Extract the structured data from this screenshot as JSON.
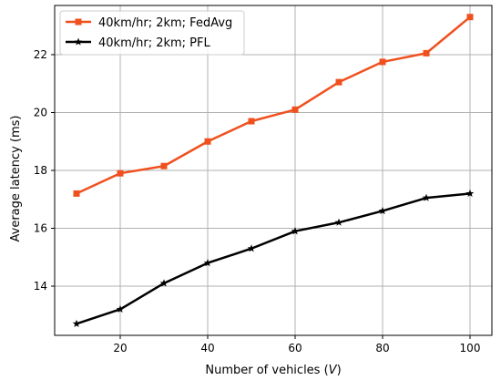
{
  "chart_data": {
    "type": "line",
    "title": "",
    "xlabel": "Number of vehicles (",
    "xlabel_var": "V",
    "xlabel_close": ")",
    "ylabel": "Average latency (ms)",
    "xlim": [
      5,
      105
    ],
    "ylim": [
      12.3,
      23.7
    ],
    "xticks": [
      20,
      40,
      60,
      80,
      100
    ],
    "yticks": [
      14,
      16,
      18,
      20,
      22
    ],
    "grid": true,
    "legend_position": "top-left",
    "x": [
      10,
      20,
      30,
      40,
      50,
      60,
      70,
      80,
      90,
      100
    ],
    "series": [
      {
        "name": "40km/hr; 2km; FedAvg",
        "color": "#f0501e",
        "marker": "square",
        "values": [
          17.2,
          17.9,
          18.15,
          19.0,
          19.7,
          20.1,
          21.05,
          21.75,
          22.05,
          23.3
        ]
      },
      {
        "name": "40km/hr; 2km; PFL",
        "color": "#000000",
        "marker": "star",
        "values": [
          12.7,
          13.2,
          14.1,
          14.8,
          15.3,
          15.9,
          16.2,
          16.6,
          17.05,
          17.2
        ]
      }
    ]
  }
}
